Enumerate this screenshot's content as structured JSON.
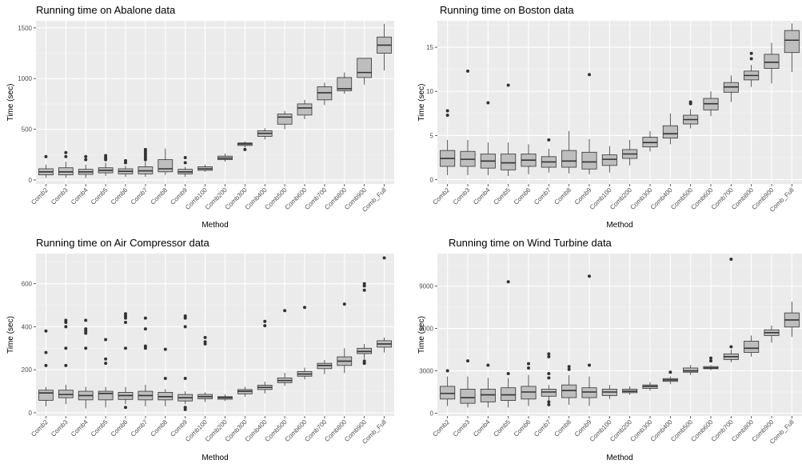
{
  "figure": {
    "colors": {
      "panel_background": "#ebebeb",
      "grid_major": "#ffffff",
      "box_fill": "#bebebe",
      "box_stroke": "#333333",
      "outlier": "#333333",
      "tick_text": "#4d4d4d"
    }
  },
  "chart_data": [
    {
      "type": "boxplot",
      "title": "Running time on Abalone data",
      "xlabel": "Method",
      "ylabel": "Time (sec)",
      "ylim": [
        -40,
        1570
      ],
      "yticks": [
        0,
        500,
        1000,
        1500
      ],
      "ytick_labels": [
        "0",
        "500",
        "1000",
        "1500"
      ],
      "grid": true,
      "categories": [
        "Comb2",
        "Comb3",
        "Comb4",
        "Comb5",
        "Comb6",
        "Comb7",
        "Comb8",
        "Comb9",
        "Comb100",
        "Comb200",
        "Comb300",
        "Comb400",
        "Comb500",
        "Comb600",
        "Comb700",
        "Comb800",
        "Comb900",
        "Comb_Full"
      ],
      "boxes": [
        {
          "whisker_low": 20,
          "q1": 50,
          "median": 80,
          "q3": 110,
          "whisker_high": 150,
          "outliers": [
            230
          ]
        },
        {
          "whisker_low": 20,
          "q1": 50,
          "median": 80,
          "q3": 120,
          "whisker_high": 180,
          "outliers": [
            230,
            270
          ]
        },
        {
          "whisker_low": 20,
          "q1": 55,
          "median": 80,
          "q3": 105,
          "whisker_high": 150,
          "outliers": [
            200,
            230
          ]
        },
        {
          "whisker_low": 40,
          "q1": 70,
          "median": 95,
          "q3": 120,
          "whisker_high": 170,
          "outliers": [
            200,
            220,
            240
          ]
        },
        {
          "whisker_low": 30,
          "q1": 60,
          "median": 85,
          "q3": 110,
          "whisker_high": 140,
          "outliers": [
            170,
            190
          ]
        },
        {
          "whisker_low": 30,
          "q1": 60,
          "median": 90,
          "q3": 130,
          "whisker_high": 180,
          "outliers": [
            200,
            220,
            240,
            260,
            280,
            300
          ]
        },
        {
          "whisker_low": 50,
          "q1": 80,
          "median": 110,
          "q3": 200,
          "whisker_high": 310,
          "outliers": []
        },
        {
          "whisker_low": 30,
          "q1": 60,
          "median": 80,
          "q3": 105,
          "whisker_high": 130,
          "outliers": [
            170,
            220
          ]
        },
        {
          "whisker_low": 80,
          "q1": 95,
          "median": 110,
          "q3": 130,
          "whisker_high": 150,
          "outliers": []
        },
        {
          "whisker_low": 180,
          "q1": 200,
          "median": 215,
          "q3": 235,
          "whisker_high": 260,
          "outliers": []
        },
        {
          "whisker_low": 320,
          "q1": 340,
          "median": 355,
          "q3": 365,
          "whisker_high": 380,
          "outliers": [
            300
          ]
        },
        {
          "whisker_low": 400,
          "q1": 430,
          "median": 460,
          "q3": 485,
          "whisker_high": 510,
          "outliers": []
        },
        {
          "whisker_low": 500,
          "q1": 550,
          "median": 620,
          "q3": 650,
          "whisker_high": 680,
          "outliers": []
        },
        {
          "whisker_low": 600,
          "q1": 640,
          "median": 710,
          "q3": 750,
          "whisker_high": 790,
          "outliers": []
        },
        {
          "whisker_low": 740,
          "q1": 790,
          "median": 860,
          "q3": 920,
          "whisker_high": 960,
          "outliers": []
        },
        {
          "whisker_low": 850,
          "q1": 880,
          "median": 900,
          "q3": 1010,
          "whisker_high": 1060,
          "outliers": []
        },
        {
          "whisker_low": 940,
          "q1": 1010,
          "median": 1060,
          "q3": 1200,
          "whisker_high": 1200,
          "outliers": []
        },
        {
          "whisker_low": 1080,
          "q1": 1250,
          "median": 1330,
          "q3": 1410,
          "whisker_high": 1540,
          "outliers": []
        }
      ]
    },
    {
      "type": "boxplot",
      "title": "Running time on Boston data",
      "xlabel": "Method",
      "ylabel": "Time (sec)",
      "ylim": [
        -0.5,
        18
      ],
      "yticks": [
        0,
        5,
        10,
        15
      ],
      "ytick_labels": [
        "0",
        "5",
        "10",
        "15"
      ],
      "grid": true,
      "categories": [
        "Comb2",
        "Comb3",
        "Comb4",
        "Comb5",
        "Comb6",
        "Comb7",
        "Comb8",
        "Comb9",
        "Comb100",
        "Comb200",
        "Comb300",
        "Comb400",
        "Comb500",
        "Comb600",
        "Comb700",
        "Comb800",
        "Comb900",
        "Comb_Full"
      ],
      "boxes": [
        {
          "whisker_low": 0.5,
          "q1": 1.5,
          "median": 2.4,
          "q3": 3.3,
          "whisker_high": 4.5,
          "outliers": [
            7.3,
            7.8
          ]
        },
        {
          "whisker_low": 0.5,
          "q1": 1.5,
          "median": 2.3,
          "q3": 3.2,
          "whisker_high": 4.5,
          "outliers": [
            12.3
          ]
        },
        {
          "whisker_low": 0.5,
          "q1": 1.3,
          "median": 2.1,
          "q3": 2.9,
          "whisker_high": 4.2,
          "outliers": [
            8.7
          ]
        },
        {
          "whisker_low": 0.4,
          "q1": 1.1,
          "median": 1.9,
          "q3": 2.9,
          "whisker_high": 4.2,
          "outliers": [
            10.7
          ]
        },
        {
          "whisker_low": 0.6,
          "q1": 1.5,
          "median": 2.2,
          "q3": 2.9,
          "whisker_high": 4.0,
          "outliers": []
        },
        {
          "whisker_low": 0.8,
          "q1": 1.4,
          "median": 2.0,
          "q3": 2.6,
          "whisker_high": 3.5,
          "outliers": [
            4.5
          ]
        },
        {
          "whisker_low": 0.7,
          "q1": 1.4,
          "median": 2.1,
          "q3": 3.3,
          "whisker_high": 5.5,
          "outliers": []
        },
        {
          "whisker_low": 0.6,
          "q1": 1.2,
          "median": 2.0,
          "q3": 3.1,
          "whisker_high": 4.6,
          "outliers": [
            11.9
          ]
        },
        {
          "whisker_low": 0.8,
          "q1": 1.6,
          "median": 2.3,
          "q3": 2.8,
          "whisker_high": 3.8,
          "outliers": []
        },
        {
          "whisker_low": 1.6,
          "q1": 2.4,
          "median": 2.9,
          "q3": 3.4,
          "whisker_high": 4.5,
          "outliers": []
        },
        {
          "whisker_low": 3.2,
          "q1": 3.7,
          "median": 4.2,
          "q3": 4.8,
          "whisker_high": 5.5,
          "outliers": []
        },
        {
          "whisker_low": 4.0,
          "q1": 4.7,
          "median": 5.2,
          "q3": 6.1,
          "whisker_high": 7.5,
          "outliers": []
        },
        {
          "whisker_low": 5.8,
          "q1": 6.3,
          "median": 6.8,
          "q3": 7.3,
          "whisker_high": 8.0,
          "outliers": [
            8.6,
            8.8
          ]
        },
        {
          "whisker_low": 7.2,
          "q1": 7.9,
          "median": 8.6,
          "q3": 9.2,
          "whisker_high": 10.0,
          "outliers": []
        },
        {
          "whisker_low": 8.8,
          "q1": 9.9,
          "median": 10.5,
          "q3": 11.0,
          "whisker_high": 11.8,
          "outliers": []
        },
        {
          "whisker_low": 10.5,
          "q1": 11.3,
          "median": 11.8,
          "q3": 12.3,
          "whisker_high": 13.0,
          "outliers": [
            13.7,
            14.3
          ]
        },
        {
          "whisker_low": 10.9,
          "q1": 12.6,
          "median": 13.3,
          "q3": 14.2,
          "whisker_high": 15.5,
          "outliers": []
        },
        {
          "whisker_low": 12.2,
          "q1": 14.4,
          "median": 15.8,
          "q3": 16.9,
          "whisker_high": 17.7,
          "outliers": []
        }
      ]
    },
    {
      "type": "boxplot",
      "title": "Running time on Air Compressor data",
      "xlabel": "Method",
      "ylabel": "Time (sec)",
      "ylim": [
        -15,
        740
      ],
      "yticks": [
        0,
        200,
        400,
        600
      ],
      "ytick_labels": [
        "0",
        "200",
        "400",
        "600"
      ],
      "grid": true,
      "categories": [
        "Comb2",
        "Comb3",
        "Comb4",
        "Comb5",
        "Comb6",
        "Comb7",
        "Comb8",
        "Comb9",
        "Comb100",
        "Comb200",
        "Comb300",
        "Comb400",
        "Comb500",
        "Comb600",
        "Comb700",
        "Comb800",
        "Comb900",
        "Comb_Full"
      ],
      "boxes": [
        {
          "whisker_low": 30,
          "q1": 58,
          "median": 92,
          "q3": 105,
          "whisker_high": 120,
          "outliers": [
            220,
            280,
            380
          ]
        },
        {
          "whisker_low": 40,
          "q1": 70,
          "median": 85,
          "q3": 105,
          "whisker_high": 130,
          "outliers": [
            220,
            300,
            400,
            420,
            430
          ]
        },
        {
          "whisker_low": 20,
          "q1": 60,
          "median": 80,
          "q3": 100,
          "whisker_high": 120,
          "outliers": [
            300,
            370,
            380,
            390,
            430
          ]
        },
        {
          "whisker_low": 25,
          "q1": 60,
          "median": 90,
          "q3": 100,
          "whisker_high": 120,
          "outliers": [
            230,
            250,
            340
          ]
        },
        {
          "whisker_low": 40,
          "q1": 62,
          "median": 80,
          "q3": 95,
          "whisker_high": 120,
          "outliers": [
            25,
            300,
            420,
            440,
            450,
            460
          ]
        },
        {
          "whisker_low": 30,
          "q1": 60,
          "median": 80,
          "q3": 100,
          "whisker_high": 130,
          "outliers": [
            300,
            310,
            390,
            440
          ]
        },
        {
          "whisker_low": 30,
          "q1": 60,
          "median": 75,
          "q3": 95,
          "whisker_high": 110,
          "outliers": [
            160,
            295
          ]
        },
        {
          "whisker_low": 40,
          "q1": 55,
          "median": 70,
          "q3": 85,
          "whisker_high": 100,
          "outliers": [
            15,
            25,
            160,
            400,
            440,
            450
          ]
        },
        {
          "whisker_low": 50,
          "q1": 65,
          "median": 75,
          "q3": 85,
          "whisker_high": 95,
          "outliers": [
            320,
            330,
            350
          ]
        },
        {
          "whisker_low": 55,
          "q1": 63,
          "median": 70,
          "q3": 75,
          "whisker_high": 85,
          "outliers": []
        },
        {
          "whisker_low": 75,
          "q1": 88,
          "median": 100,
          "q3": 108,
          "whisker_high": 120,
          "outliers": []
        },
        {
          "whisker_low": 90,
          "q1": 108,
          "median": 118,
          "q3": 128,
          "whisker_high": 145,
          "outliers": [
            405,
            425
          ]
        },
        {
          "whisker_low": 125,
          "q1": 140,
          "median": 150,
          "q3": 162,
          "whisker_high": 185,
          "outliers": [
            475
          ]
        },
        {
          "whisker_low": 155,
          "q1": 170,
          "median": 180,
          "q3": 192,
          "whisker_high": 210,
          "outliers": [
            490
          ]
        },
        {
          "whisker_low": 180,
          "q1": 205,
          "median": 220,
          "q3": 230,
          "whisker_high": 245,
          "outliers": []
        },
        {
          "whisker_low": 185,
          "q1": 220,
          "median": 240,
          "q3": 260,
          "whisker_high": 300,
          "outliers": [
            505
          ]
        },
        {
          "whisker_low": 250,
          "q1": 275,
          "median": 285,
          "q3": 300,
          "whisker_high": 320,
          "outliers": [
            230,
            240,
            570,
            590,
            600
          ]
        },
        {
          "whisker_low": 280,
          "q1": 305,
          "median": 320,
          "q3": 335,
          "whisker_high": 350,
          "outliers": [
            720
          ]
        }
      ]
    },
    {
      "type": "boxplot",
      "title": "Running time on Wind Turbine data",
      "xlabel": "Method",
      "ylabel": "Time (sec)",
      "ylim": [
        -200,
        11300
      ],
      "yticks": [
        0,
        3000,
        6000,
        9000
      ],
      "ytick_labels": [
        "0",
        "3000",
        "6000",
        "9000"
      ],
      "grid": true,
      "categories": [
        "Comb2",
        "Comb3",
        "Comb4",
        "Comb5",
        "Comb6",
        "Comb7",
        "Comb8",
        "Comb9",
        "Comb100",
        "Comb200",
        "Comb300",
        "Comb400",
        "Comb500",
        "Comb600",
        "Comb700",
        "Comb800",
        "Comb900",
        "Comb_Full"
      ],
      "boxes": [
        {
          "whisker_low": 500,
          "q1": 1000,
          "median": 1400,
          "q3": 1900,
          "whisker_high": 2600,
          "outliers": [
            3000
          ]
        },
        {
          "whisker_low": 400,
          "q1": 700,
          "median": 1100,
          "q3": 1700,
          "whisker_high": 2600,
          "outliers": [
            3700
          ]
        },
        {
          "whisker_low": 400,
          "q1": 800,
          "median": 1300,
          "q3": 1700,
          "whisker_high": 2500,
          "outliers": [
            3400
          ]
        },
        {
          "whisker_low": 400,
          "q1": 900,
          "median": 1300,
          "q3": 1800,
          "whisker_high": 2500,
          "outliers": [
            2800,
            9300
          ]
        },
        {
          "whisker_low": 500,
          "q1": 1000,
          "median": 1500,
          "q3": 1900,
          "whisker_high": 2700,
          "outliers": [
            3200,
            3500
          ]
        },
        {
          "whisker_low": 900,
          "q1": 1200,
          "median": 1500,
          "q3": 1700,
          "whisker_high": 2000,
          "outliers": [
            600,
            800,
            2500,
            2800,
            4000,
            4200
          ]
        },
        {
          "whisker_low": 600,
          "q1": 1100,
          "median": 1600,
          "q3": 2000,
          "whisker_high": 2700,
          "outliers": [
            3100,
            3300
          ]
        },
        {
          "whisker_low": 500,
          "q1": 1100,
          "median": 1500,
          "q3": 1800,
          "whisker_high": 2600,
          "outliers": [
            3400,
            9700
          ]
        },
        {
          "whisker_low": 1000,
          "q1": 1250,
          "median": 1500,
          "q3": 1700,
          "whisker_high": 2000,
          "outliers": []
        },
        {
          "whisker_low": 1300,
          "q1": 1450,
          "median": 1550,
          "q3": 1700,
          "whisker_high": 1900,
          "outliers": []
        },
        {
          "whisker_low": 1600,
          "q1": 1750,
          "median": 1900,
          "q3": 2000,
          "whisker_high": 2200,
          "outliers": []
        },
        {
          "whisker_low": 2050,
          "q1": 2250,
          "median": 2350,
          "q3": 2450,
          "whisker_high": 2600,
          "outliers": [
            2900
          ]
        },
        {
          "whisker_low": 2700,
          "q1": 2900,
          "median": 3000,
          "q3": 3200,
          "whisker_high": 3400,
          "outliers": []
        },
        {
          "whisker_low": 3050,
          "q1": 3150,
          "median": 3200,
          "q3": 3300,
          "whisker_high": 3400,
          "outliers": [
            3700,
            3900
          ]
        },
        {
          "whisker_low": 3600,
          "q1": 3800,
          "median": 4000,
          "q3": 4200,
          "whisker_high": 4500,
          "outliers": [
            4700,
            10900
          ]
        },
        {
          "whisker_low": 4000,
          "q1": 4300,
          "median": 4600,
          "q3": 5100,
          "whisker_high": 5500,
          "outliers": []
        },
        {
          "whisker_low": 5000,
          "q1": 5500,
          "median": 5700,
          "q3": 5900,
          "whisker_high": 6200,
          "outliers": []
        },
        {
          "whisker_low": 5400,
          "q1": 6100,
          "median": 6600,
          "q3": 7100,
          "whisker_high": 7900,
          "outliers": []
        }
      ]
    }
  ]
}
